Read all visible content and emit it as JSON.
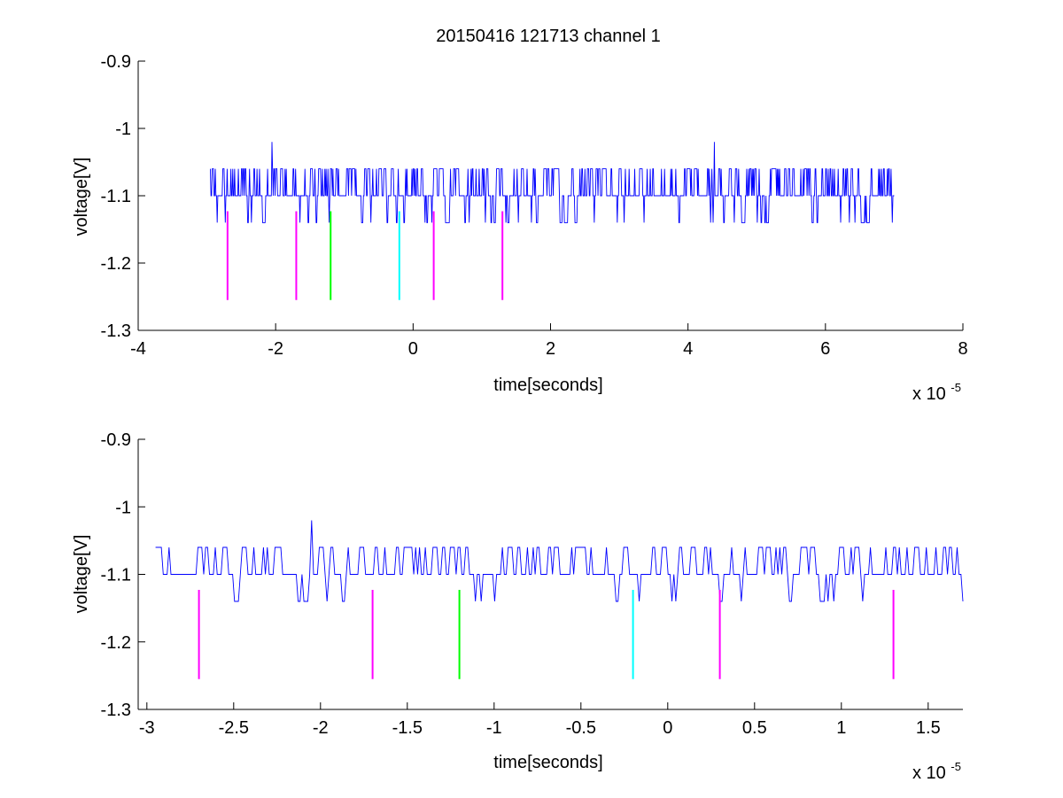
{
  "figure": {
    "title": "20150416 121713 channel 1"
  },
  "chart_data": [
    {
      "type": "line",
      "title": "20150416 121713 channel 1",
      "xlabel": "time[seconds]",
      "ylabel": "voltage[V]",
      "xlim": [
        -4,
        8
      ],
      "ylim": [
        -1.3,
        -0.9
      ],
      "x_exponent_label": "x 10",
      "x_exponent": "-5",
      "xticks": [
        -4,
        -2,
        0,
        2,
        4,
        6,
        8
      ],
      "xtick_labels": [
        "-4",
        "-2",
        "0",
        "2",
        "4",
        "6",
        "8"
      ],
      "yticks": [
        -0.9,
        -1,
        -1.1,
        -1.2,
        -1.3
      ],
      "ytick_labels": [
        "-0.9",
        "-1",
        "-1.1",
        "-1.2",
        "-1.3"
      ],
      "box": "left-bottom",
      "grid": false,
      "series": [
        {
          "color": "#0000ff",
          "x_range": [
            -2.95,
            7.0
          ],
          "baseline": -1.1,
          "levels": [
            -1.06,
            -1.1,
            -1.14
          ],
          "spikes": [
            {
              "x": -2.05,
              "y": -1.02
            },
            {
              "x": 4.38,
              "y": -1.02
            }
          ],
          "n_samples": 1100,
          "seed": 11
        }
      ],
      "markers": [
        {
          "x": -2.7,
          "y": [
            -1.255,
            -1.123
          ],
          "color": "#ff00ff"
        },
        {
          "x": -1.7,
          "y": [
            -1.255,
            -1.123
          ],
          "color": "#ff00ff"
        },
        {
          "x": -1.2,
          "y": [
            -1.255,
            -1.123
          ],
          "color": "#00ff00"
        },
        {
          "x": -0.2,
          "y": [
            -1.255,
            -1.123
          ],
          "color": "#00ffff"
        },
        {
          "x": 0.3,
          "y": [
            -1.255,
            -1.123
          ],
          "color": "#ff00ff"
        },
        {
          "x": 1.3,
          "y": [
            -1.255,
            -1.123
          ],
          "color": "#ff00ff"
        }
      ]
    },
    {
      "type": "line",
      "title": "",
      "xlabel": "time[seconds]",
      "ylabel": "voltage[V]",
      "xlim": [
        -3.05,
        1.7
      ],
      "ylim": [
        -1.3,
        -0.9
      ],
      "x_exponent_label": "x 10",
      "x_exponent": "-5",
      "xticks": [
        -3,
        -2.5,
        -2,
        -1.5,
        -1,
        -0.5,
        0,
        0.5,
        1,
        1.5
      ],
      "xtick_labels": [
        "-3",
        "-2.5",
        "-2",
        "-1.5",
        "-1",
        "-0.5",
        "0",
        "0.5",
        "1",
        "1.5"
      ],
      "yticks": [
        -0.9,
        -1,
        -1.1,
        -1.2,
        -1.3
      ],
      "ytick_labels": [
        "-0.9",
        "-1",
        "-1.1",
        "-1.2",
        "-1.3"
      ],
      "box": "left-bottom",
      "grid": false,
      "series": [
        {
          "color": "#0000ff",
          "x_range": [
            -2.95,
            1.7
          ],
          "baseline": -1.1,
          "levels": [
            -1.06,
            -1.1,
            -1.14
          ],
          "spikes": [
            {
              "x": -2.05,
              "y": -1.02
            }
          ],
          "n_samples": 420,
          "seed": 7
        }
      ],
      "markers": [
        {
          "x": -2.7,
          "y": [
            -1.255,
            -1.123
          ],
          "color": "#ff00ff"
        },
        {
          "x": -1.7,
          "y": [
            -1.255,
            -1.123
          ],
          "color": "#ff00ff"
        },
        {
          "x": -1.2,
          "y": [
            -1.255,
            -1.123
          ],
          "color": "#00ff00"
        },
        {
          "x": -0.2,
          "y": [
            -1.255,
            -1.123
          ],
          "color": "#00ffff"
        },
        {
          "x": 0.3,
          "y": [
            -1.255,
            -1.123
          ],
          "color": "#ff00ff"
        },
        {
          "x": 1.3,
          "y": [
            -1.255,
            -1.123
          ],
          "color": "#ff00ff"
        }
      ]
    }
  ]
}
